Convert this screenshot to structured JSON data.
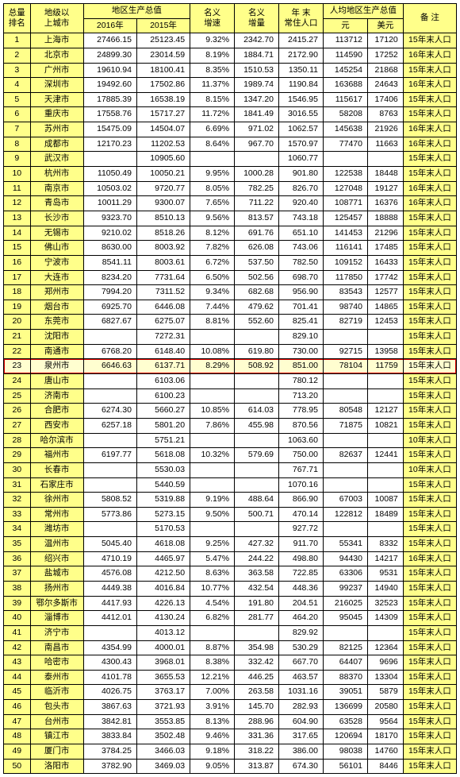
{
  "colors": {
    "header_bg": "#ffff8a",
    "border": "#000000",
    "highlight_row_bg": "#fffed0",
    "highlight_border": "#e00000",
    "page_bg": "#ffffff",
    "text": "#000000"
  },
  "typography": {
    "font_family": "SimSun",
    "font_size_pt": 8
  },
  "header": {
    "rank": {
      "l1": "总量",
      "l2": "排名"
    },
    "city": {
      "l1": "地级以",
      "l2": "上城市"
    },
    "gdp": {
      "l1": "地区生产总值",
      "y16": "2016年",
      "y15": "2015年"
    },
    "rate": {
      "l1": "名义",
      "l2": "增速"
    },
    "inc": {
      "l1": "名义",
      "l2": "增量"
    },
    "pop": {
      "l1": "年 末",
      "l2": "常住人口"
    },
    "pcgdp": {
      "l1": "人均地区生产总值",
      "yuan": "元",
      "usd": "美元"
    },
    "note": {
      "l1": "备 注"
    }
  },
  "highlight_rank": 23,
  "rows": [
    {
      "rank": 1,
      "city": "上海市",
      "g16": "27466.15",
      "g15": "25123.45",
      "rate": "9.32%",
      "inc": "2342.70",
      "pop": "2415.27",
      "yuan": "113712",
      "usd": "17120",
      "note": "15年末人口"
    },
    {
      "rank": 2,
      "city": "北京市",
      "g16": "24899.30",
      "g15": "23014.59",
      "rate": "8.19%",
      "inc": "1884.71",
      "pop": "2172.90",
      "yuan": "114590",
      "usd": "17252",
      "note": "16年末人口"
    },
    {
      "rank": 3,
      "city": "广州市",
      "g16": "19610.94",
      "g15": "18100.41",
      "rate": "8.35%",
      "inc": "1510.53",
      "pop": "1350.11",
      "yuan": "145254",
      "usd": "21868",
      "note": "15年末人口"
    },
    {
      "rank": 4,
      "city": "深圳市",
      "g16": "19492.60",
      "g15": "17502.86",
      "rate": "11.37%",
      "inc": "1989.74",
      "pop": "1190.84",
      "yuan": "163688",
      "usd": "24643",
      "note": "16年末人口"
    },
    {
      "rank": 5,
      "city": "天津市",
      "g16": "17885.39",
      "g15": "16538.19",
      "rate": "8.15%",
      "inc": "1347.20",
      "pop": "1546.95",
      "yuan": "115617",
      "usd": "17406",
      "note": "15年末人口"
    },
    {
      "rank": 6,
      "city": "重庆市",
      "g16": "17558.76",
      "g15": "15717.27",
      "rate": "11.72%",
      "inc": "1841.49",
      "pop": "3016.55",
      "yuan": "58208",
      "usd": "8763",
      "note": "15年末人口"
    },
    {
      "rank": 7,
      "city": "苏州市",
      "g16": "15475.09",
      "g15": "14504.07",
      "rate": "6.69%",
      "inc": "971.02",
      "pop": "1062.57",
      "yuan": "145638",
      "usd": "21926",
      "note": "16年末人口"
    },
    {
      "rank": 8,
      "city": "成都市",
      "g16": "12170.23",
      "g15": "11202.53",
      "rate": "8.64%",
      "inc": "967.70",
      "pop": "1570.97",
      "yuan": "77470",
      "usd": "11663",
      "note": "16年末人口"
    },
    {
      "rank": 9,
      "city": "武汉市",
      "g16": "",
      "g15": "10905.60",
      "rate": "",
      "inc": "",
      "pop": "1060.77",
      "yuan": "",
      "usd": "",
      "note": "15年末人口"
    },
    {
      "rank": 10,
      "city": "杭州市",
      "g16": "11050.49",
      "g15": "10050.21",
      "rate": "9.95%",
      "inc": "1000.28",
      "pop": "901.80",
      "yuan": "122538",
      "usd": "18448",
      "note": "15年末人口"
    },
    {
      "rank": 11,
      "city": "南京市",
      "g16": "10503.02",
      "g15": "9720.77",
      "rate": "8.05%",
      "inc": "782.25",
      "pop": "826.70",
      "yuan": "127048",
      "usd": "19127",
      "note": "16年末人口"
    },
    {
      "rank": 12,
      "city": "青岛市",
      "g16": "10011.29",
      "g15": "9300.07",
      "rate": "7.65%",
      "inc": "711.22",
      "pop": "920.40",
      "yuan": "108771",
      "usd": "16376",
      "note": "16年末人口"
    },
    {
      "rank": 13,
      "city": "长沙市",
      "g16": "9323.70",
      "g15": "8510.13",
      "rate": "9.56%",
      "inc": "813.57",
      "pop": "743.18",
      "yuan": "125457",
      "usd": "18888",
      "note": "15年末人口"
    },
    {
      "rank": 14,
      "city": "无锡市",
      "g16": "9210.02",
      "g15": "8518.26",
      "rate": "8.12%",
      "inc": "691.76",
      "pop": "651.10",
      "yuan": "141453",
      "usd": "21296",
      "note": "15年末人口"
    },
    {
      "rank": 15,
      "city": "佛山市",
      "g16": "8630.00",
      "g15": "8003.92",
      "rate": "7.82%",
      "inc": "626.08",
      "pop": "743.06",
      "yuan": "116141",
      "usd": "17485",
      "note": "15年末人口"
    },
    {
      "rank": 16,
      "city": "宁波市",
      "g16": "8541.11",
      "g15": "8003.61",
      "rate": "6.72%",
      "inc": "537.50",
      "pop": "782.50",
      "yuan": "109152",
      "usd": "16433",
      "note": "15年末人口"
    },
    {
      "rank": 17,
      "city": "大连市",
      "g16": "8234.20",
      "g15": "7731.64",
      "rate": "6.50%",
      "inc": "502.56",
      "pop": "698.70",
      "yuan": "117850",
      "usd": "17742",
      "note": "15年末人口"
    },
    {
      "rank": 18,
      "city": "郑州市",
      "g16": "7994.20",
      "g15": "7311.52",
      "rate": "9.34%",
      "inc": "682.68",
      "pop": "956.90",
      "yuan": "83543",
      "usd": "12577",
      "note": "15年末人口"
    },
    {
      "rank": 19,
      "city": "烟台市",
      "g16": "6925.70",
      "g15": "6446.08",
      "rate": "7.44%",
      "inc": "479.62",
      "pop": "701.41",
      "yuan": "98740",
      "usd": "14865",
      "note": "15年末人口"
    },
    {
      "rank": 20,
      "city": "东莞市",
      "g16": "6827.67",
      "g15": "6275.07",
      "rate": "8.81%",
      "inc": "552.60",
      "pop": "825.41",
      "yuan": "82719",
      "usd": "12453",
      "note": "15年末人口"
    },
    {
      "rank": 21,
      "city": "沈阳市",
      "g16": "",
      "g15": "7272.31",
      "rate": "",
      "inc": "",
      "pop": "829.10",
      "yuan": "",
      "usd": "",
      "note": "15年末人口"
    },
    {
      "rank": 22,
      "city": "南通市",
      "g16": "6768.20",
      "g15": "6148.40",
      "rate": "10.08%",
      "inc": "619.80",
      "pop": "730.00",
      "yuan": "92715",
      "usd": "13958",
      "note": "15年末人口"
    },
    {
      "rank": 23,
      "city": "泉州市",
      "g16": "6646.63",
      "g15": "6137.71",
      "rate": "8.29%",
      "inc": "508.92",
      "pop": "851.00",
      "yuan": "78104",
      "usd": "11759",
      "note": "15年末人口"
    },
    {
      "rank": 24,
      "city": "唐山市",
      "g16": "",
      "g15": "6103.06",
      "rate": "",
      "inc": "",
      "pop": "780.12",
      "yuan": "",
      "usd": "",
      "note": "15年末人口"
    },
    {
      "rank": 25,
      "city": "济南市",
      "g16": "",
      "g15": "6100.23",
      "rate": "",
      "inc": "",
      "pop": "713.20",
      "yuan": "",
      "usd": "",
      "note": "15年末人口"
    },
    {
      "rank": 26,
      "city": "合肥市",
      "g16": "6274.30",
      "g15": "5660.27",
      "rate": "10.85%",
      "inc": "614.03",
      "pop": "778.95",
      "yuan": "80548",
      "usd": "12127",
      "note": "15年末人口"
    },
    {
      "rank": 27,
      "city": "西安市",
      "g16": "6257.18",
      "g15": "5801.20",
      "rate": "7.86%",
      "inc": "455.98",
      "pop": "870.56",
      "yuan": "71875",
      "usd": "10821",
      "note": "15年末人口"
    },
    {
      "rank": 28,
      "city": "哈尔滨市",
      "g16": "",
      "g15": "5751.21",
      "rate": "",
      "inc": "",
      "pop": "1063.60",
      "yuan": "",
      "usd": "",
      "note": "10年末人口"
    },
    {
      "rank": 29,
      "city": "福州市",
      "g16": "6197.77",
      "g15": "5618.08",
      "rate": "10.32%",
      "inc": "579.69",
      "pop": "750.00",
      "yuan": "82637",
      "usd": "12441",
      "note": "15年末人口"
    },
    {
      "rank": 30,
      "city": "长春市",
      "g16": "",
      "g15": "5530.03",
      "rate": "",
      "inc": "",
      "pop": "767.71",
      "yuan": "",
      "usd": "",
      "note": "10年末人口"
    },
    {
      "rank": 31,
      "city": "石家庄市",
      "g16": "",
      "g15": "5440.59",
      "rate": "",
      "inc": "",
      "pop": "1070.16",
      "yuan": "",
      "usd": "",
      "note": "15年末人口"
    },
    {
      "rank": 32,
      "city": "徐州市",
      "g16": "5808.52",
      "g15": "5319.88",
      "rate": "9.19%",
      "inc": "488.64",
      "pop": "866.90",
      "yuan": "67003",
      "usd": "10087",
      "note": "15年末人口"
    },
    {
      "rank": 33,
      "city": "常州市",
      "g16": "5773.86",
      "g15": "5273.15",
      "rate": "9.50%",
      "inc": "500.71",
      "pop": "470.14",
      "yuan": "122812",
      "usd": "18489",
      "note": "15年末人口"
    },
    {
      "rank": 34,
      "city": "潍坊市",
      "g16": "",
      "g15": "5170.53",
      "rate": "",
      "inc": "",
      "pop": "927.72",
      "yuan": "",
      "usd": "",
      "note": "15年末人口"
    },
    {
      "rank": 35,
      "city": "温州市",
      "g16": "5045.40",
      "g15": "4618.08",
      "rate": "9.25%",
      "inc": "427.32",
      "pop": "911.70",
      "yuan": "55341",
      "usd": "8332",
      "note": "15年末人口"
    },
    {
      "rank": 36,
      "city": "绍兴市",
      "g16": "4710.19",
      "g15": "4465.97",
      "rate": "5.47%",
      "inc": "244.22",
      "pop": "498.80",
      "yuan": "94430",
      "usd": "14217",
      "note": "16年末人口"
    },
    {
      "rank": 37,
      "city": "盐城市",
      "g16": "4576.08",
      "g15": "4212.50",
      "rate": "8.63%",
      "inc": "363.58",
      "pop": "722.85",
      "yuan": "63306",
      "usd": "9531",
      "note": "15年末人口"
    },
    {
      "rank": 38,
      "city": "扬州市",
      "g16": "4449.38",
      "g15": "4016.84",
      "rate": "10.77%",
      "inc": "432.54",
      "pop": "448.36",
      "yuan": "99237",
      "usd": "14940",
      "note": "15年末人口"
    },
    {
      "rank": 39,
      "city": "鄂尔多斯市",
      "g16": "4417.93",
      "g15": "4226.13",
      "rate": "4.54%",
      "inc": "191.80",
      "pop": "204.51",
      "yuan": "216025",
      "usd": "32523",
      "note": "15年末人口"
    },
    {
      "rank": 40,
      "city": "淄博市",
      "g16": "4412.01",
      "g15": "4130.24",
      "rate": "6.82%",
      "inc": "281.77",
      "pop": "464.20",
      "yuan": "95045",
      "usd": "14309",
      "note": "15年末人口"
    },
    {
      "rank": 41,
      "city": "济宁市",
      "g16": "",
      "g15": "4013.12",
      "rate": "",
      "inc": "",
      "pop": "829.92",
      "yuan": "",
      "usd": "",
      "note": "15年末人口"
    },
    {
      "rank": 42,
      "city": "南昌市",
      "g16": "4354.99",
      "g15": "4000.01",
      "rate": "8.87%",
      "inc": "354.98",
      "pop": "530.29",
      "yuan": "82125",
      "usd": "12364",
      "note": "15年末人口"
    },
    {
      "rank": 43,
      "city": "哈密市",
      "g16": "4300.43",
      "g15": "3968.01",
      "rate": "8.38%",
      "inc": "332.42",
      "pop": "667.70",
      "yuan": "64407",
      "usd": "9696",
      "note": "15年末人口"
    },
    {
      "rank": 44,
      "city": "泰州市",
      "g16": "4101.78",
      "g15": "3655.53",
      "rate": "12.21%",
      "inc": "446.25",
      "pop": "463.57",
      "yuan": "88370",
      "usd": "13304",
      "note": "15年末人口"
    },
    {
      "rank": 45,
      "city": "临沂市",
      "g16": "4026.75",
      "g15": "3763.17",
      "rate": "7.00%",
      "inc": "263.58",
      "pop": "1031.16",
      "yuan": "39051",
      "usd": "5879",
      "note": "15年末人口"
    },
    {
      "rank": 46,
      "city": "包头市",
      "g16": "3867.63",
      "g15": "3721.93",
      "rate": "3.91%",
      "inc": "145.70",
      "pop": "282.93",
      "yuan": "136699",
      "usd": "20580",
      "note": "15年末人口"
    },
    {
      "rank": 47,
      "city": "台州市",
      "g16": "3842.81",
      "g15": "3553.85",
      "rate": "8.13%",
      "inc": "288.96",
      "pop": "604.90",
      "yuan": "63528",
      "usd": "9564",
      "note": "15年末人口"
    },
    {
      "rank": 48,
      "city": "镇江市",
      "g16": "3833.84",
      "g15": "3502.48",
      "rate": "9.46%",
      "inc": "331.36",
      "pop": "317.65",
      "yuan": "120694",
      "usd": "18170",
      "note": "15年末人口"
    },
    {
      "rank": 49,
      "city": "厦门市",
      "g16": "3784.25",
      "g15": "3466.03",
      "rate": "9.18%",
      "inc": "318.22",
      "pop": "386.00",
      "yuan": "98038",
      "usd": "14760",
      "note": "15年末人口"
    },
    {
      "rank": 50,
      "city": "洛阳市",
      "g16": "3782.90",
      "g15": "3469.03",
      "rate": "9.05%",
      "inc": "313.87",
      "pop": "674.30",
      "yuan": "56101",
      "usd": "8446",
      "note": "15年末人口"
    }
  ]
}
